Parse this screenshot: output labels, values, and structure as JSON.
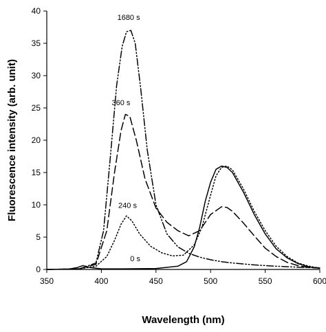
{
  "chart_data": {
    "type": "line",
    "title": "",
    "xlabel": "Wavelength (nm)",
    "ylabel": "Fluorescence intensity (arb. unit)",
    "xlim": [
      350,
      600
    ],
    "ylim": [
      0,
      40
    ],
    "xticks": [
      350,
      400,
      450,
      500,
      550,
      600
    ],
    "yticks": [
      0,
      5,
      10,
      15,
      20,
      25,
      30,
      35,
      40
    ],
    "grid": false,
    "legend": "none",
    "series": [
      {
        "label": "0 s",
        "dash": "solid",
        "x": [
          350,
          370,
          378,
          383,
          390,
          400,
          420,
          450,
          470,
          478,
          485,
          490,
          495,
          500,
          505,
          510,
          515,
          520,
          530,
          540,
          550,
          560,
          570,
          580,
          590,
          600
        ],
        "y": [
          0.0,
          0.05,
          0.3,
          0.6,
          0.3,
          0.1,
          0.1,
          0.15,
          0.5,
          1.2,
          3.5,
          6.5,
          10.5,
          13.5,
          15.5,
          16.0,
          15.8,
          15.0,
          12.0,
          8.5,
          5.5,
          3.2,
          1.8,
          0.9,
          0.4,
          0.2
        ],
        "annotation": {
          "text": "0 s",
          "x": 431,
          "y": 1.3
        }
      },
      {
        "label": "240 s",
        "dash": "dotted",
        "x": [
          350,
          380,
          395,
          405,
          412,
          418,
          423,
          428,
          435,
          445,
          455,
          465,
          475,
          485,
          492,
          500,
          505,
          510,
          515,
          520,
          530,
          540,
          550,
          560,
          570,
          580,
          590,
          600
        ],
        "y": [
          0.0,
          0.1,
          0.5,
          2.0,
          4.5,
          7.0,
          8.3,
          7.5,
          5.5,
          3.6,
          2.6,
          2.1,
          2.2,
          3.8,
          6.5,
          11.5,
          14.5,
          15.8,
          16.0,
          15.4,
          12.5,
          9.0,
          6.0,
          3.6,
          2.0,
          1.0,
          0.5,
          0.2
        ],
        "annotation": {
          "text": "240 s",
          "x": 424,
          "y": 9.5
        }
      },
      {
        "label": "360 s",
        "dash": "dashed",
        "x": [
          350,
          380,
          395,
          405,
          412,
          418,
          422,
          426,
          432,
          440,
          450,
          460,
          470,
          480,
          490,
          500,
          510,
          515,
          520,
          530,
          540,
          550,
          560,
          570,
          580,
          590,
          600
        ],
        "y": [
          0.0,
          0.1,
          0.8,
          6.0,
          15.0,
          21.5,
          24.0,
          23.7,
          20.0,
          14.0,
          9.5,
          7.3,
          6.0,
          5.2,
          6.0,
          8.5,
          9.7,
          9.6,
          9.0,
          7.2,
          5.2,
          3.3,
          2.0,
          1.1,
          0.6,
          0.3,
          0.2
        ],
        "annotation": {
          "text": "360 s",
          "x": 418,
          "y": 25.4
        }
      },
      {
        "label": "1680 s",
        "dash": "dash-dot-dot",
        "x": [
          350,
          380,
          395,
          402,
          408,
          414,
          419,
          423,
          427,
          431,
          436,
          442,
          450,
          460,
          470,
          480,
          490,
          500,
          510,
          520,
          540,
          560,
          580,
          600
        ],
        "y": [
          0.0,
          0.1,
          1.0,
          6.0,
          17.0,
          28.5,
          34.5,
          36.8,
          37.0,
          35.0,
          28.0,
          18.5,
          10.0,
          5.5,
          3.5,
          2.5,
          1.9,
          1.5,
          1.2,
          1.0,
          0.7,
          0.5,
          0.35,
          0.25
        ],
        "annotation": {
          "text": "1680 s",
          "x": 425,
          "y": 38.6
        }
      }
    ]
  }
}
